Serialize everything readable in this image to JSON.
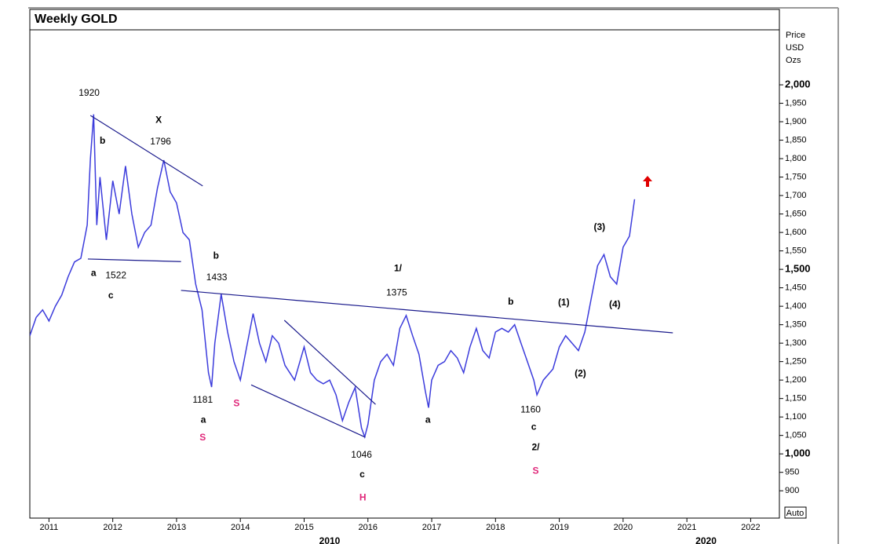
{
  "chart_data": {
    "type": "line",
    "title": "Weekly GOLD",
    "ylabel": [
      "Price",
      "USD",
      "Ozs"
    ],
    "button": "Auto",
    "decade_labels": [
      {
        "value": 2015.4,
        "label": "2010"
      },
      {
        "value": 2021.3,
        "label": "2020"
      }
    ],
    "xlim": [
      2010.7,
      2022.45
    ],
    "xticks": [
      2011,
      2012,
      2013,
      2014,
      2015,
      2016,
      2017,
      2018,
      2019,
      2020,
      2021,
      2022
    ],
    "ylim": [
      826,
      2149
    ],
    "yticks": [
      900,
      950,
      {
        "value": 1000,
        "label": "1,000"
      },
      {
        "value": 1050,
        "label": "1,050"
      },
      {
        "value": 1100,
        "label": "1,100"
      },
      {
        "value": 1150,
        "label": "1,150"
      },
      {
        "value": 1200,
        "label": "1,200"
      },
      {
        "value": 1250,
        "label": "1,250"
      },
      {
        "value": 1300,
        "label": "1,300"
      },
      {
        "value": 1350,
        "label": "1,350"
      },
      {
        "value": 1400,
        "label": "1,400"
      },
      {
        "value": 1450,
        "label": "1,450"
      },
      {
        "value": 1500,
        "label": "1,500"
      },
      {
        "value": 1550,
        "label": "1,550"
      },
      {
        "value": 1600,
        "label": "1,600"
      },
      {
        "value": 1650,
        "label": "1,650"
      },
      {
        "value": 1700,
        "label": "1,700"
      },
      {
        "value": 1750,
        "label": "1,750"
      },
      {
        "value": 1800,
        "label": "1,800"
      },
      {
        "value": 1850,
        "label": "1,850"
      },
      {
        "value": 1900,
        "label": "1,900"
      },
      {
        "value": 1950,
        "label": "1,950"
      },
      {
        "value": 2000,
        "label": "2,000"
      }
    ],
    "series": [
      {
        "name": "GOLD",
        "color": "#3c3cdc",
        "x": [
          2010.7,
          2010.8,
          2010.9,
          2011.0,
          2011.1,
          2011.2,
          2011.3,
          2011.4,
          2011.5,
          2011.6,
          2011.65,
          2011.7,
          2011.75,
          2011.8,
          2011.9,
          2012.0,
          2012.1,
          2012.2,
          2012.3,
          2012.4,
          2012.5,
          2012.6,
          2012.7,
          2012.8,
          2012.9,
          2013.0,
          2013.1,
          2013.2,
          2013.3,
          2013.4,
          2013.5,
          2013.55,
          2013.6,
          2013.7,
          2013.8,
          2013.9,
          2014.0,
          2014.1,
          2014.2,
          2014.3,
          2014.4,
          2014.5,
          2014.6,
          2014.7,
          2014.85,
          2015.0,
          2015.1,
          2015.2,
          2015.3,
          2015.4,
          2015.5,
          2015.6,
          2015.7,
          2015.8,
          2015.9,
          2015.95,
          2016.0,
          2016.1,
          2016.2,
          2016.3,
          2016.4,
          2016.5,
          2016.6,
          2016.7,
          2016.8,
          2016.9,
          2016.95,
          2017.0,
          2017.1,
          2017.2,
          2017.3,
          2017.4,
          2017.5,
          2017.6,
          2017.7,
          2017.8,
          2017.9,
          2018.0,
          2018.1,
          2018.2,
          2018.3,
          2018.4,
          2018.5,
          2018.6,
          2018.65,
          2018.75,
          2018.9,
          2019.0,
          2019.1,
          2019.2,
          2019.3,
          2019.4,
          2019.5,
          2019.6,
          2019.7,
          2019.8,
          2019.9,
          2020.0,
          2020.1,
          2020.18
        ],
        "values": [
          1320,
          1370,
          1390,
          1360,
          1400,
          1430,
          1480,
          1520,
          1530,
          1620,
          1800,
          1920,
          1620,
          1750,
          1580,
          1740,
          1650,
          1780,
          1650,
          1560,
          1600,
          1620,
          1720,
          1796,
          1710,
          1680,
          1600,
          1580,
          1460,
          1390,
          1220,
          1181,
          1300,
          1433,
          1330,
          1250,
          1200,
          1290,
          1380,
          1300,
          1250,
          1320,
          1300,
          1240,
          1200,
          1290,
          1220,
          1200,
          1190,
          1200,
          1160,
          1090,
          1140,
          1180,
          1070,
          1046,
          1080,
          1200,
          1250,
          1270,
          1240,
          1340,
          1375,
          1320,
          1270,
          1170,
          1125,
          1200,
          1240,
          1250,
          1280,
          1260,
          1220,
          1290,
          1340,
          1280,
          1260,
          1330,
          1340,
          1330,
          1350,
          1300,
          1250,
          1200,
          1160,
          1200,
          1230,
          1290,
          1320,
          1300,
          1280,
          1330,
          1420,
          1510,
          1540,
          1480,
          1460,
          1560,
          1590,
          1690
        ]
      }
    ],
    "trend_lines": [
      {
        "x": [
          2011.65,
          2013.41
        ],
        "y": [
          1917,
          1726
        ]
      },
      {
        "x": [
          2011.61,
          2013.07
        ],
        "y": [
          1528,
          1521
        ]
      },
      {
        "x": [
          2013.07,
          2020.78
        ],
        "y": [
          1443,
          1328
        ]
      },
      {
        "x": [
          2014.69,
          2016.12
        ],
        "y": [
          1362,
          1134
        ]
      },
      {
        "x": [
          2014.17,
          2015.96
        ],
        "y": [
          1187,
          1045
        ]
      }
    ],
    "annotations": [
      {
        "text": "1920",
        "x": 2011.63,
        "y": 1977
      },
      {
        "text": "X",
        "x": 2012.72,
        "y": 1904,
        "bold": true
      },
      {
        "text": "b",
        "x": 2011.84,
        "y": 1847,
        "bold": true
      },
      {
        "text": "1796",
        "x": 2012.75,
        "y": 1845
      },
      {
        "text": "a",
        "x": 2011.7,
        "y": 1489,
        "bold": true
      },
      {
        "text": "1522",
        "x": 2012.05,
        "y": 1483
      },
      {
        "text": "c",
        "x": 2011.97,
        "y": 1428,
        "bold": true
      },
      {
        "text": "b",
        "x": 2013.62,
        "y": 1536,
        "bold": true
      },
      {
        "text": "1433",
        "x": 2013.63,
        "y": 1477
      },
      {
        "text": "1181",
        "x": 2013.41,
        "y": 1145
      },
      {
        "text": "a",
        "x": 2013.42,
        "y": 1091,
        "bold": true
      },
      {
        "text": "S",
        "x": 2013.41,
        "y": 1043,
        "bold": true,
        "color": "#e0287a"
      },
      {
        "text": "S",
        "x": 2013.94,
        "y": 1136,
        "bold": true,
        "color": "#e0287a"
      },
      {
        "text": "1/",
        "x": 2016.47,
        "y": 1502,
        "bold": true
      },
      {
        "text": "1375",
        "x": 2016.45,
        "y": 1436
      },
      {
        "text": "1046",
        "x": 2015.9,
        "y": 996
      },
      {
        "text": "c",
        "x": 2015.91,
        "y": 943,
        "bold": true
      },
      {
        "text": "H",
        "x": 2015.92,
        "y": 881,
        "bold": true,
        "color": "#e0287a"
      },
      {
        "text": "a",
        "x": 2016.94,
        "y": 1091,
        "bold": true
      },
      {
        "text": "b",
        "x": 2018.24,
        "y": 1411,
        "bold": true
      },
      {
        "text": "1160",
        "x": 2018.55,
        "y": 1119
      },
      {
        "text": "c",
        "x": 2018.6,
        "y": 1072,
        "bold": true
      },
      {
        "text": "2/",
        "x": 2018.63,
        "y": 1017,
        "bold": true
      },
      {
        "text": "S",
        "x": 2018.63,
        "y": 953,
        "bold": true,
        "color": "#e0287a"
      },
      {
        "text": "(1)",
        "x": 2019.07,
        "y": 1409,
        "bold": true
      },
      {
        "text": "(2)",
        "x": 2019.33,
        "y": 1217,
        "bold": true
      },
      {
        "text": "(3)",
        "x": 2019.63,
        "y": 1613,
        "bold": true
      },
      {
        "text": "(4)",
        "x": 2019.87,
        "y": 1404,
        "bold": true
      }
    ]
  }
}
